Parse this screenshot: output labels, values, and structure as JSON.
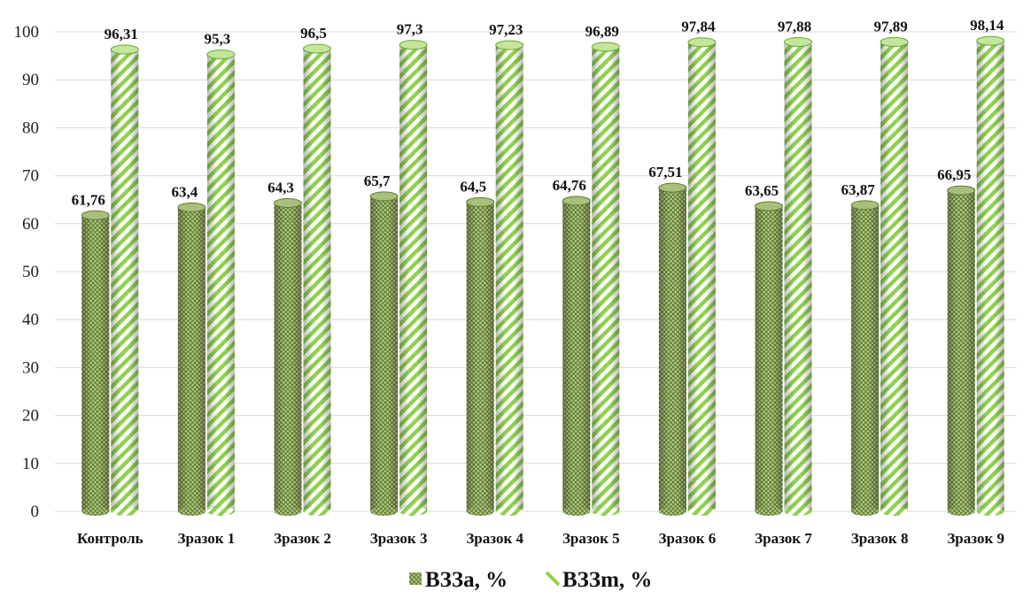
{
  "chart_data": {
    "type": "bar",
    "categories": [
      "Контроль",
      "Зразок 1",
      "Зразок 2",
      "Зразок 3",
      "Зразок 4",
      "Зразок 5",
      "Зразок 6",
      "Зразок 7",
      "Зразок 8",
      "Зразок 9"
    ],
    "series": [
      {
        "name": "ВЗЗа, %",
        "values": [
          61.76,
          63.4,
          64.3,
          65.7,
          64.5,
          64.76,
          67.51,
          63.65,
          63.87,
          66.95
        ],
        "labels": [
          "61,76",
          "63,4",
          "64,3",
          "65,7",
          "64,5",
          "64,76",
          "67,51",
          "63,65",
          "63,87",
          "66,95"
        ],
        "color": "#8faa55",
        "pattern": "crosshatch"
      },
      {
        "name": "ВЗЗm, %",
        "values": [
          96.31,
          95.3,
          96.5,
          97.3,
          97.23,
          96.89,
          97.84,
          97.88,
          97.89,
          98.14
        ],
        "labels": [
          "96,31",
          "95,3",
          "96,5",
          "97,3",
          "97,23",
          "96,89",
          "97,84",
          "97,88",
          "97,89",
          "98,14"
        ],
        "color": "#92d050",
        "pattern": "diagonal-stripes"
      }
    ],
    "ylim": [
      0,
      100
    ],
    "yticks": [
      "0",
      "10",
      "20",
      "30",
      "40",
      "50",
      "60",
      "70",
      "80",
      "90",
      "100"
    ],
    "grid": true,
    "legend": "bottom",
    "title": "",
    "xlabel": "",
    "ylabel": ""
  }
}
